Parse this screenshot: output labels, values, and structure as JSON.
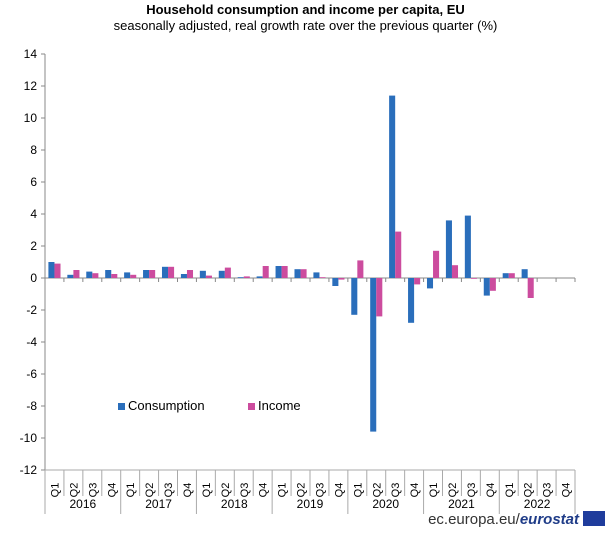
{
  "chart_data": {
    "type": "bar",
    "title": "Household consumption and income per capita, EU",
    "subtitle": "seasonally adjusted, real growth rate over the previous quarter (%)",
    "xlabel": "",
    "ylabel": "",
    "ylim": [
      -12,
      14
    ],
    "yticks": [
      -12,
      -10,
      -8,
      -6,
      -4,
      -2,
      0,
      2,
      4,
      6,
      8,
      10,
      12,
      14
    ],
    "years": [
      "2016",
      "2017",
      "2018",
      "2019",
      "2020",
      "2021",
      "2022"
    ],
    "quarters": [
      "Q1",
      "Q2",
      "Q3",
      "Q4"
    ],
    "legend_placement": "lower-left inside",
    "series": [
      {
        "name": "Consumption",
        "color": "#2a6ebb",
        "values": [
          1.0,
          0.2,
          0.4,
          0.5,
          0.35,
          0.5,
          0.7,
          0.25,
          0.45,
          0.45,
          0.05,
          0.1,
          0.75,
          0.55,
          0.35,
          -0.5,
          -2.3,
          -9.6,
          11.4,
          -2.8,
          -0.65,
          3.6,
          3.9,
          -1.1,
          0.3,
          0.55,
          null,
          null
        ]
      },
      {
        "name": "Income",
        "color": "#cc4c9e",
        "values": [
          0.9,
          0.5,
          0.3,
          0.25,
          0.2,
          0.5,
          0.7,
          0.5,
          0.15,
          0.65,
          0.1,
          0.75,
          0.75,
          0.55,
          0.05,
          -0.1,
          1.1,
          -2.4,
          2.9,
          -0.4,
          1.7,
          0.8,
          -0.05,
          -0.8,
          0.3,
          -1.25,
          null,
          null
        ]
      }
    ]
  },
  "footer": {
    "domain": "ec.europa.eu/",
    "brand": "eurostat"
  }
}
